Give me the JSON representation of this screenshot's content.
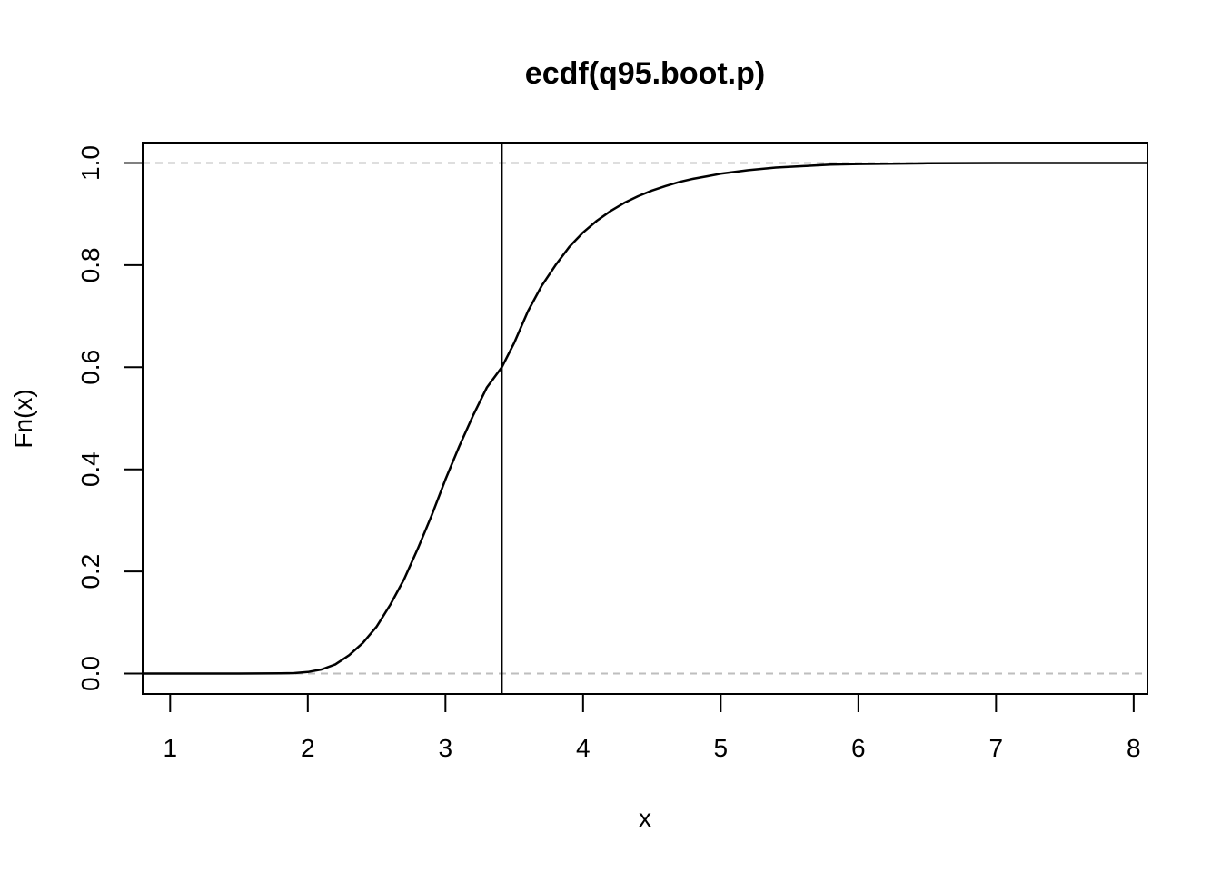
{
  "chart_data": {
    "type": "line",
    "title": "ecdf(q95.boot.p)",
    "xlabel": "x",
    "ylabel": "Fn(x)",
    "xlim": [
      0.8,
      8.1
    ],
    "ylim": [
      -0.04,
      1.04
    ],
    "x_ticks": [
      1,
      2,
      3,
      4,
      5,
      6,
      7,
      8
    ],
    "x_tick_labels": [
      "1",
      "2",
      "3",
      "4",
      "5",
      "6",
      "7",
      "8"
    ],
    "y_ticks": [
      0,
      0.2,
      0.4,
      0.6,
      0.8,
      1
    ],
    "y_tick_labels": [
      "0.0",
      "0.2",
      "0.4",
      "0.6",
      "0.8",
      "1.0"
    ],
    "reference_lines": {
      "horizontal_dashed": [
        0,
        1
      ],
      "horizontal_color": "#bebebe",
      "vertical_solid": [
        3.41
      ]
    },
    "series": [
      {
        "x": [
          0.8,
          1.5,
          1.8,
          1.9,
          2.0,
          2.1,
          2.2,
          2.3,
          2.4,
          2.5,
          2.6,
          2.7,
          2.8,
          2.9,
          3.0,
          3.1,
          3.2,
          3.3,
          3.41,
          3.5,
          3.6,
          3.7,
          3.8,
          3.9,
          4.0,
          4.1,
          4.2,
          4.3,
          4.4,
          4.5,
          4.6,
          4.7,
          4.8,
          4.9,
          5.0,
          5.2,
          5.4,
          5.6,
          5.8,
          6.0,
          6.5,
          7.0,
          8.1
        ],
        "y": [
          0.0,
          0.0,
          0.0005,
          0.001,
          0.003,
          0.008,
          0.018,
          0.036,
          0.06,
          0.092,
          0.135,
          0.185,
          0.245,
          0.31,
          0.38,
          0.445,
          0.505,
          0.56,
          0.6,
          0.648,
          0.71,
          0.76,
          0.8,
          0.836,
          0.864,
          0.887,
          0.906,
          0.922,
          0.935,
          0.946,
          0.955,
          0.963,
          0.969,
          0.974,
          0.979,
          0.986,
          0.991,
          0.994,
          0.997,
          0.998,
          0.9995,
          1.0,
          1.0
        ],
        "color": "#000000"
      }
    ]
  }
}
